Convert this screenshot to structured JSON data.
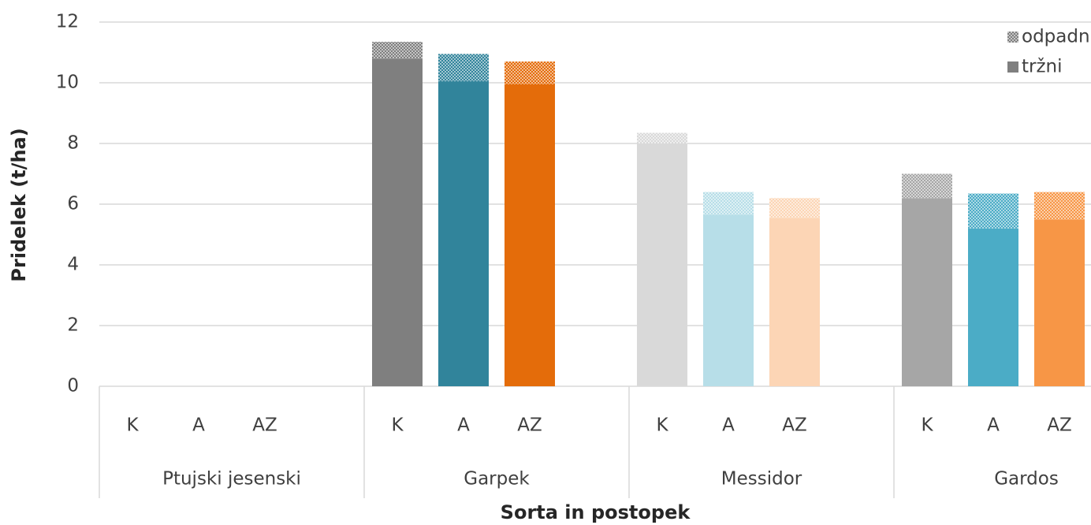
{
  "chart_data": {
    "type": "bar",
    "stacked": true,
    "groups": [
      {
        "name": "Ptujski jesenski",
        "categories": [
          "K",
          "A",
          "AZ"
        ]
      },
      {
        "name": "Garpek",
        "categories": [
          "K",
          "A",
          "AZ"
        ]
      },
      {
        "name": "Messidor",
        "categories": [
          "K",
          "A",
          "AZ"
        ]
      },
      {
        "name": "Gardos",
        "categories": [
          "K",
          "A",
          "AZ"
        ]
      }
    ],
    "bar_colors": [
      null,
      null,
      null,
      "#7f7f7f",
      "#31849b",
      "#e46c0a",
      "#d9d9d9",
      "#b7dee8",
      "#fcd5b5",
      "#a6a6a6",
      "#4bacc6",
      "#f79646"
    ],
    "series": [
      {
        "name": "tržni",
        "color": "#7f7f7f",
        "values": [
          null,
          null,
          null,
          10.8,
          10.05,
          9.95,
          8.0,
          5.65,
          5.55,
          6.2,
          5.2,
          5.5
        ]
      },
      {
        "name": "odpadni",
        "color": "#7f7f7f",
        "pattern": "crosshatch",
        "values": [
          null,
          null,
          null,
          0.55,
          0.9,
          0.75,
          0.35,
          0.75,
          0.65,
          0.8,
          1.15,
          0.9
        ]
      }
    ],
    "ylabel": "Pridelek (t/ha)",
    "xlabel": "Sorta in postopek",
    "ylim": [
      0,
      12
    ],
    "yticks": [
      0,
      2,
      4,
      6,
      8,
      10,
      12
    ],
    "grid": true,
    "legend": "top-right"
  }
}
